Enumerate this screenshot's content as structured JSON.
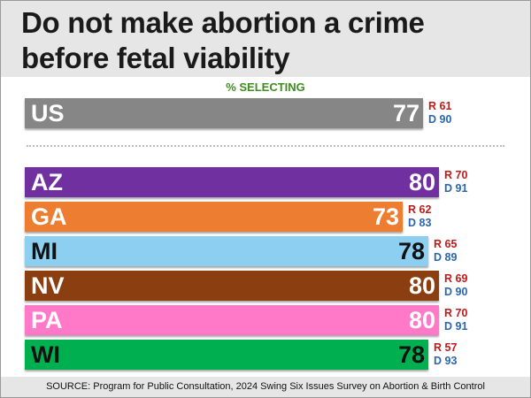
{
  "title": "Do not make abortion a crime\nbefore fetal viability",
  "subtitle": "% SELECTING",
  "source": "SOURCE: Program for Public Consultation, 2024 Swing Six Issues Survey on Abortion & Birth Control",
  "chart_data": {
    "type": "bar",
    "orientation": "horizontal",
    "title": "Do not make abortion a crime before fetal viability",
    "subtitle": "% SELECTING",
    "xlim": [
      0,
      100
    ],
    "categories": [
      "US",
      "AZ",
      "GA",
      "MI",
      "NV",
      "PA",
      "WI"
    ],
    "values": [
      77,
      80,
      73,
      78,
      80,
      80,
      78
    ],
    "bar_colors": [
      "#868686",
      "#7030a0",
      "#ed7d31",
      "#8ccff0",
      "#8b3e10",
      "#ff79c8",
      "#00b050"
    ],
    "dark_text": [
      false,
      false,
      false,
      true,
      false,
      false,
      true
    ],
    "series_annotations": {
      "republican": {
        "prefix": "R",
        "values": [
          61,
          70,
          62,
          65,
          69,
          70,
          57
        ]
      },
      "democrat": {
        "prefix": "D",
        "values": [
          90,
          91,
          83,
          89,
          90,
          91,
          93
        ]
      }
    }
  }
}
